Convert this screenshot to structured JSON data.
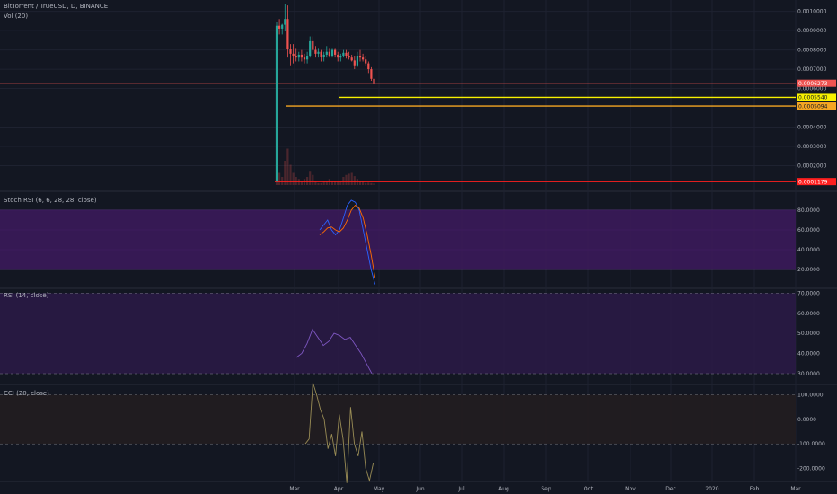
{
  "header": {
    "symbol_line": "BitTorrent / TrueUSD, D, BINANCE",
    "vol_label": "Vol (20)"
  },
  "panes": {
    "stoch_label": "Stoch RSI (6, 6, 28, 28, close)",
    "rsi_label": "RSI (14, close)",
    "cci_label": "CCI (20, close)"
  },
  "colors": {
    "background": "#131722",
    "grid": "#1e2230",
    "axis_text": "#b2b5be",
    "candle_up": "#26a69a",
    "candle_down": "#ef5350",
    "line_red": "#ff1f1f",
    "line_orange": "#f5a623",
    "line_yellow": "#f7f000",
    "stoch_band": "#3b1a5a",
    "rsi_band": "#2a1a45",
    "cci_band": "#221d20"
  },
  "chart_data": [
    {
      "type": "candlestick",
      "pane": "price",
      "x_tick_labels": [
        "Mar",
        "Apr",
        "May",
        "Jun",
        "Jul",
        "Aug",
        "Sep",
        "Oct",
        "Nov",
        "Dec",
        "2020",
        "Feb",
        "Mar"
      ],
      "y_tick_labels": [
        "0.0010000",
        "0.0009000",
        "0.0008000",
        "0.0007000",
        "0.0006000",
        "0.0004000",
        "0.0003000",
        "0.0002000"
      ],
      "ylim": [
        0.0001,
        0.00104
      ],
      "price_labels": [
        {
          "text": "0.0006273",
          "color": "#ef5350"
        },
        {
          "text": "0.0005540",
          "color": "#f7f000"
        },
        {
          "text": "0.0005094",
          "color": "#f5a623"
        },
        {
          "text": "0.0001179",
          "color": "#ff1f1f"
        }
      ],
      "horizontal_lines": [
        {
          "value": 0.000554,
          "color": "#f7f000"
        },
        {
          "value": 0.0005094,
          "color": "#f5a623"
        },
        {
          "value": 0.0001179,
          "color": "#ff1f1f"
        },
        {
          "value": 0.0006273,
          "color": "#ef5350"
        }
      ],
      "candles": [
        {
          "o": 0.000118,
          "h": 0.000945,
          "l": 0.000118,
          "c": 0.000925
        },
        {
          "o": 0.000925,
          "h": 0.00096,
          "l": 0.00088,
          "c": 0.00091
        },
        {
          "o": 0.00091,
          "h": 0.000935,
          "l": 0.00088,
          "c": 0.00093
        },
        {
          "o": 0.00093,
          "h": 0.00104,
          "l": 0.0009,
          "c": 0.00096
        },
        {
          "o": 0.00096,
          "h": 0.00103,
          "l": 0.00076,
          "c": 0.000805
        },
        {
          "o": 0.000805,
          "h": 0.00083,
          "l": 0.00072,
          "c": 0.00078
        },
        {
          "o": 0.00078,
          "h": 0.00083,
          "l": 0.00073,
          "c": 0.00077
        },
        {
          "o": 0.00077,
          "h": 0.00081,
          "l": 0.00074,
          "c": 0.00076
        },
        {
          "o": 0.00076,
          "h": 0.00079,
          "l": 0.00074,
          "c": 0.000775
        },
        {
          "o": 0.000775,
          "h": 0.0008,
          "l": 0.00074,
          "c": 0.00076
        },
        {
          "o": 0.00076,
          "h": 0.00078,
          "l": 0.00073,
          "c": 0.00075
        },
        {
          "o": 0.00075,
          "h": 0.00079,
          "l": 0.00073,
          "c": 0.00077
        },
        {
          "o": 0.00077,
          "h": 0.00087,
          "l": 0.00076,
          "c": 0.000845
        },
        {
          "o": 0.000845,
          "h": 0.00087,
          "l": 0.00079,
          "c": 0.0008
        },
        {
          "o": 0.0008,
          "h": 0.00082,
          "l": 0.00076,
          "c": 0.00078
        },
        {
          "o": 0.00078,
          "h": 0.00081,
          "l": 0.00076,
          "c": 0.00079
        },
        {
          "o": 0.00079,
          "h": 0.0008,
          "l": 0.00074,
          "c": 0.000765
        },
        {
          "o": 0.000765,
          "h": 0.00079,
          "l": 0.00074,
          "c": 0.000775
        },
        {
          "o": 0.000775,
          "h": 0.00082,
          "l": 0.00076,
          "c": 0.00079
        },
        {
          "o": 0.00079,
          "h": 0.00081,
          "l": 0.00076,
          "c": 0.00077
        },
        {
          "o": 0.00077,
          "h": 0.00081,
          "l": 0.00076,
          "c": 0.0008
        },
        {
          "o": 0.0008,
          "h": 0.00081,
          "l": 0.00076,
          "c": 0.000775
        },
        {
          "o": 0.000775,
          "h": 0.00079,
          "l": 0.00074,
          "c": 0.00076
        },
        {
          "o": 0.00076,
          "h": 0.00078,
          "l": 0.00074,
          "c": 0.00077
        },
        {
          "o": 0.00077,
          "h": 0.0008,
          "l": 0.00076,
          "c": 0.000785
        },
        {
          "o": 0.000785,
          "h": 0.0008,
          "l": 0.000755,
          "c": 0.00077
        },
        {
          "o": 0.00077,
          "h": 0.00079,
          "l": 0.00075,
          "c": 0.00076
        },
        {
          "o": 0.00076,
          "h": 0.000775,
          "l": 0.00074,
          "c": 0.000745
        },
        {
          "o": 0.000745,
          "h": 0.00077,
          "l": 0.0007,
          "c": 0.00072
        },
        {
          "o": 0.00072,
          "h": 0.00079,
          "l": 0.00071,
          "c": 0.00077
        },
        {
          "o": 0.00077,
          "h": 0.0008,
          "l": 0.00074,
          "c": 0.00076
        },
        {
          "o": 0.00076,
          "h": 0.00078,
          "l": 0.00074,
          "c": 0.00075
        },
        {
          "o": 0.00075,
          "h": 0.00077,
          "l": 0.00072,
          "c": 0.00073
        },
        {
          "o": 0.00073,
          "h": 0.00074,
          "l": 0.00068,
          "c": 0.0007
        },
        {
          "o": 0.0007,
          "h": 0.00071,
          "l": 0.00064,
          "c": 0.00065
        },
        {
          "o": 0.00065,
          "h": 0.00066,
          "l": 0.00062,
          "c": 0.000627
        }
      ],
      "volume": [
        0.5,
        0.3,
        0.2,
        0.6,
        0.9,
        0.5,
        0.3,
        0.2,
        0.15,
        0.1,
        0.15,
        0.2,
        0.35,
        0.25,
        0.1,
        0.05,
        0.05,
        0.08,
        0.1,
        0.15,
        0.1,
        0.08,
        0.08,
        0.1,
        0.2,
        0.25,
        0.28,
        0.3,
        0.22,
        0.15,
        0.1,
        0.08,
        0.05,
        0.06,
        0.05,
        0.04
      ]
    },
    {
      "type": "line",
      "pane": "stoch_rsi",
      "y_tick_labels": [
        "80.0000",
        "60.0000",
        "40.0000",
        "20.0000"
      ],
      "ylim": [
        0,
        100
      ],
      "band": [
        20,
        80
      ],
      "series": [
        {
          "color": "#2962ff",
          "values": [
            60,
            65,
            70,
            60,
            55,
            60,
            72,
            85,
            90,
            88,
            80,
            60,
            40,
            20,
            5
          ]
        },
        {
          "color": "#ff6d00",
          "values": [
            55,
            58,
            62,
            63,
            60,
            58,
            62,
            70,
            80,
            85,
            82,
            72,
            55,
            35,
            12
          ]
        }
      ]
    },
    {
      "type": "line",
      "pane": "rsi",
      "y_tick_labels": [
        "70.0000",
        "60.0000",
        "50.0000",
        "40.0000",
        "30.0000"
      ],
      "ylim": [
        25,
        72
      ],
      "band": [
        30,
        70
      ],
      "series": [
        {
          "color": "#7e57c2",
          "values": [
            38,
            40,
            45,
            52,
            48,
            44,
            46,
            50,
            49,
            47,
            48,
            44,
            40,
            35,
            30
          ]
        }
      ]
    },
    {
      "type": "line",
      "pane": "cci",
      "y_tick_labels": [
        "100.0000",
        "0.0000",
        "-100.0000",
        "-200.0000"
      ],
      "ylim": [
        -250,
        150
      ],
      "band": [
        -100,
        100
      ],
      "series": [
        {
          "color": "#998c55",
          "values": [
            -100,
            -80,
            150,
            100,
            40,
            0,
            -120,
            -60,
            -150,
            20,
            -80,
            -260,
            50,
            -100,
            -150,
            -50,
            -200,
            -250,
            -180
          ]
        }
      ]
    }
  ]
}
